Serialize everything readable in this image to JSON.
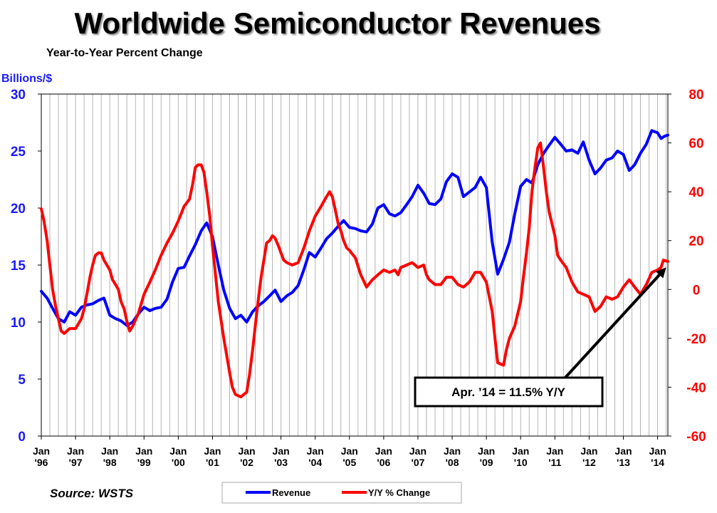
{
  "chart_data": {
    "type": "line",
    "title": "Worldwide Semiconductor Revenues",
    "subtitle": "Year-to-Year Percent Change",
    "left_axis_label": "Billions/$",
    "left_axis": {
      "min": 0,
      "max": 30,
      "ticks": [
        "0",
        "5",
        "10",
        "15",
        "20",
        "25",
        "30"
      ]
    },
    "right_axis": {
      "min": -60,
      "max": 80,
      "ticks": [
        "-60",
        "-40",
        "-20",
        "0",
        "20",
        "40",
        "60",
        "80"
      ]
    },
    "x_range": [
      1996.0,
      2014.3
    ],
    "x_ticks": [
      {
        "year": 1996,
        "top": "Jan",
        "bottom": "'96"
      },
      {
        "year": 1997,
        "top": "Jan",
        "bottom": "'97"
      },
      {
        "year": 1998,
        "top": "Jan",
        "bottom": "'98"
      },
      {
        "year": 1999,
        "top": "Jan",
        "bottom": "'99"
      },
      {
        "year": 2000,
        "top": "Jan",
        "bottom": "'00"
      },
      {
        "year": 2001,
        "top": "Jan",
        "bottom": "'01"
      },
      {
        "year": 2002,
        "top": "Jan",
        "bottom": "'02"
      },
      {
        "year": 2003,
        "top": "Jan",
        "bottom": "'03"
      },
      {
        "year": 2004,
        "top": "Jan",
        "bottom": "'04"
      },
      {
        "year": 2005,
        "top": "Jan",
        "bottom": "'05"
      },
      {
        "year": 2006,
        "top": "Jan",
        "bottom": "'06"
      },
      {
        "year": 2007,
        "top": "Jan",
        "bottom": "'07"
      },
      {
        "year": 2008,
        "top": "Jan",
        "bottom": "'08"
      },
      {
        "year": 2009,
        "top": "Jan",
        "bottom": "'09"
      },
      {
        "year": 2010,
        "top": "Jan",
        "bottom": "'10"
      },
      {
        "year": 2011,
        "top": "Jan",
        "bottom": "'11"
      },
      {
        "year": 2012,
        "top": "Jan",
        "bottom": "'12"
      },
      {
        "year": 2013,
        "top": "Jan",
        "bottom": "'13"
      },
      {
        "year": 2014,
        "top": "Jan",
        "bottom": "'14"
      }
    ],
    "series": [
      {
        "name": "Revenue",
        "axis": "left",
        "color": "#0000ff",
        "points": [
          [
            1996.0,
            12.7
          ],
          [
            1996.17,
            12.1
          ],
          [
            1996.33,
            11.2
          ],
          [
            1996.5,
            10.3
          ],
          [
            1996.67,
            10.0
          ],
          [
            1996.83,
            10.9
          ],
          [
            1997.0,
            10.6
          ],
          [
            1997.17,
            11.3
          ],
          [
            1997.33,
            11.5
          ],
          [
            1997.5,
            11.6
          ],
          [
            1997.67,
            11.9
          ],
          [
            1997.83,
            12.1
          ],
          [
            1998.0,
            10.6
          ],
          [
            1998.17,
            10.3
          ],
          [
            1998.33,
            10.1
          ],
          [
            1998.5,
            9.7
          ],
          [
            1998.67,
            10.0
          ],
          [
            1998.83,
            10.7
          ],
          [
            1999.0,
            11.3
          ],
          [
            1999.17,
            11.0
          ],
          [
            1999.33,
            11.2
          ],
          [
            1999.5,
            11.3
          ],
          [
            1999.67,
            12.0
          ],
          [
            1999.83,
            13.5
          ],
          [
            2000.0,
            14.7
          ],
          [
            2000.17,
            14.8
          ],
          [
            2000.33,
            15.8
          ],
          [
            2000.5,
            16.8
          ],
          [
            2000.67,
            18.0
          ],
          [
            2000.83,
            18.7
          ],
          [
            2001.0,
            17.5
          ],
          [
            2001.17,
            15.0
          ],
          [
            2001.33,
            12.8
          ],
          [
            2001.5,
            11.2
          ],
          [
            2001.67,
            10.3
          ],
          [
            2001.83,
            10.6
          ],
          [
            2002.0,
            10.0
          ],
          [
            2002.17,
            10.9
          ],
          [
            2002.33,
            11.4
          ],
          [
            2002.5,
            11.8
          ],
          [
            2002.67,
            12.3
          ],
          [
            2002.83,
            12.8
          ],
          [
            2003.0,
            11.8
          ],
          [
            2003.17,
            12.3
          ],
          [
            2003.33,
            12.6
          ],
          [
            2003.5,
            13.2
          ],
          [
            2003.67,
            14.6
          ],
          [
            2003.83,
            16.1
          ],
          [
            2004.0,
            15.7
          ],
          [
            2004.17,
            16.5
          ],
          [
            2004.33,
            17.3
          ],
          [
            2004.5,
            17.8
          ],
          [
            2004.67,
            18.4
          ],
          [
            2004.83,
            18.9
          ],
          [
            2005.0,
            18.3
          ],
          [
            2005.17,
            18.2
          ],
          [
            2005.33,
            18.0
          ],
          [
            2005.5,
            17.9
          ],
          [
            2005.67,
            18.6
          ],
          [
            2005.83,
            20.0
          ],
          [
            2006.0,
            20.3
          ],
          [
            2006.17,
            19.5
          ],
          [
            2006.33,
            19.3
          ],
          [
            2006.5,
            19.6
          ],
          [
            2006.67,
            20.3
          ],
          [
            2006.83,
            21.0
          ],
          [
            2007.0,
            22.0
          ],
          [
            2007.17,
            21.3
          ],
          [
            2007.33,
            20.4
          ],
          [
            2007.5,
            20.3
          ],
          [
            2007.67,
            20.8
          ],
          [
            2007.83,
            22.3
          ],
          [
            2008.0,
            23.0
          ],
          [
            2008.17,
            22.7
          ],
          [
            2008.33,
            21.0
          ],
          [
            2008.5,
            21.4
          ],
          [
            2008.67,
            21.8
          ],
          [
            2008.83,
            22.7
          ],
          [
            2009.0,
            21.8
          ],
          [
            2009.17,
            17.0
          ],
          [
            2009.33,
            14.2
          ],
          [
            2009.5,
            15.5
          ],
          [
            2009.67,
            17.0
          ],
          [
            2009.83,
            19.5
          ],
          [
            2010.0,
            21.9
          ],
          [
            2010.17,
            22.5
          ],
          [
            2010.33,
            22.2
          ],
          [
            2010.5,
            23.8
          ],
          [
            2010.67,
            24.8
          ],
          [
            2010.83,
            25.5
          ],
          [
            2011.0,
            26.2
          ],
          [
            2011.17,
            25.6
          ],
          [
            2011.33,
            25.0
          ],
          [
            2011.5,
            25.1
          ],
          [
            2011.67,
            24.8
          ],
          [
            2011.83,
            25.8
          ],
          [
            2012.0,
            24.2
          ],
          [
            2012.17,
            23.0
          ],
          [
            2012.33,
            23.5
          ],
          [
            2012.5,
            24.2
          ],
          [
            2012.67,
            24.4
          ],
          [
            2012.83,
            25.0
          ],
          [
            2013.0,
            24.7
          ],
          [
            2013.17,
            23.3
          ],
          [
            2013.33,
            23.8
          ],
          [
            2013.5,
            24.8
          ],
          [
            2013.67,
            25.6
          ],
          [
            2013.83,
            26.8
          ],
          [
            2014.0,
            26.6
          ],
          [
            2014.1,
            26.1
          ],
          [
            2014.2,
            26.3
          ],
          [
            2014.3,
            26.4
          ]
        ]
      },
      {
        "name": "Y/Y % Change",
        "axis": "right",
        "color": "#ff0000",
        "points": [
          [
            1996.0,
            33
          ],
          [
            1996.08,
            28
          ],
          [
            1996.17,
            20
          ],
          [
            1996.25,
            10
          ],
          [
            1996.33,
            0
          ],
          [
            1996.42,
            -7
          ],
          [
            1996.5,
            -12
          ],
          [
            1996.58,
            -17
          ],
          [
            1996.67,
            -18
          ],
          [
            1996.83,
            -16
          ],
          [
            1997.0,
            -16
          ],
          [
            1997.17,
            -12
          ],
          [
            1997.25,
            -8
          ],
          [
            1997.33,
            -2
          ],
          [
            1997.42,
            5
          ],
          [
            1997.5,
            10
          ],
          [
            1997.58,
            14
          ],
          [
            1997.67,
            15
          ],
          [
            1997.75,
            15
          ],
          [
            1997.83,
            12
          ],
          [
            1998.0,
            8
          ],
          [
            1998.08,
            4
          ],
          [
            1998.17,
            2
          ],
          [
            1998.25,
            0
          ],
          [
            1998.33,
            -5
          ],
          [
            1998.42,
            -8
          ],
          [
            1998.5,
            -13
          ],
          [
            1998.58,
            -17
          ],
          [
            1998.67,
            -15
          ],
          [
            1998.83,
            -10
          ],
          [
            1999.0,
            -2
          ],
          [
            1999.17,
            3
          ],
          [
            1999.33,
            8
          ],
          [
            1999.5,
            14
          ],
          [
            1999.67,
            19
          ],
          [
            1999.83,
            23
          ],
          [
            2000.0,
            28
          ],
          [
            2000.17,
            34
          ],
          [
            2000.33,
            37
          ],
          [
            2000.42,
            43
          ],
          [
            2000.5,
            50
          ],
          [
            2000.58,
            51
          ],
          [
            2000.67,
            51
          ],
          [
            2000.75,
            48
          ],
          [
            2000.83,
            40
          ],
          [
            2000.92,
            30
          ],
          [
            2001.0,
            18
          ],
          [
            2001.17,
            -5
          ],
          [
            2001.33,
            -20
          ],
          [
            2001.5,
            -34
          ],
          [
            2001.58,
            -40
          ],
          [
            2001.67,
            -43
          ],
          [
            2001.83,
            -44
          ],
          [
            2002.0,
            -42
          ],
          [
            2002.08,
            -35
          ],
          [
            2002.17,
            -25
          ],
          [
            2002.25,
            -15
          ],
          [
            2002.33,
            -5
          ],
          [
            2002.42,
            5
          ],
          [
            2002.5,
            12
          ],
          [
            2002.58,
            19
          ],
          [
            2002.67,
            20
          ],
          [
            2002.75,
            22
          ],
          [
            2002.83,
            21
          ],
          [
            2002.92,
            18
          ],
          [
            2003.0,
            15
          ],
          [
            2003.08,
            12
          ],
          [
            2003.17,
            11
          ],
          [
            2003.33,
            10
          ],
          [
            2003.5,
            11
          ],
          [
            2003.67,
            17
          ],
          [
            2003.83,
            24
          ],
          [
            2004.0,
            30
          ],
          [
            2004.17,
            34
          ],
          [
            2004.25,
            36
          ],
          [
            2004.33,
            38
          ],
          [
            2004.42,
            40
          ],
          [
            2004.5,
            38
          ],
          [
            2004.58,
            33
          ],
          [
            2004.67,
            27
          ],
          [
            2004.75,
            24
          ],
          [
            2004.83,
            20
          ],
          [
            2004.92,
            17
          ],
          [
            2005.0,
            16
          ],
          [
            2005.17,
            13
          ],
          [
            2005.33,
            6
          ],
          [
            2005.5,
            1
          ],
          [
            2005.67,
            4
          ],
          [
            2005.83,
            6
          ],
          [
            2006.0,
            8
          ],
          [
            2006.17,
            7
          ],
          [
            2006.33,
            8
          ],
          [
            2006.42,
            6
          ],
          [
            2006.5,
            9
          ],
          [
            2006.67,
            10
          ],
          [
            2006.83,
            11
          ],
          [
            2007.0,
            9
          ],
          [
            2007.17,
            10
          ],
          [
            2007.25,
            6
          ],
          [
            2007.33,
            4
          ],
          [
            2007.5,
            2
          ],
          [
            2007.67,
            2
          ],
          [
            2007.83,
            5
          ],
          [
            2008.0,
            5
          ],
          [
            2008.17,
            2
          ],
          [
            2008.33,
            1
          ],
          [
            2008.5,
            3
          ],
          [
            2008.67,
            7
          ],
          [
            2008.83,
            7
          ],
          [
            2009.0,
            3
          ],
          [
            2009.17,
            -9
          ],
          [
            2009.25,
            -20
          ],
          [
            2009.33,
            -30
          ],
          [
            2009.5,
            -31
          ],
          [
            2009.58,
            -25
          ],
          [
            2009.67,
            -20
          ],
          [
            2009.83,
            -15
          ],
          [
            2010.0,
            -5
          ],
          [
            2010.08,
            5
          ],
          [
            2010.17,
            15
          ],
          [
            2010.25,
            25
          ],
          [
            2010.33,
            40
          ],
          [
            2010.42,
            50
          ],
          [
            2010.5,
            58
          ],
          [
            2010.58,
            60
          ],
          [
            2010.67,
            50
          ],
          [
            2010.75,
            40
          ],
          [
            2010.83,
            32
          ],
          [
            2011.0,
            22
          ],
          [
            2011.08,
            14
          ],
          [
            2011.17,
            12
          ],
          [
            2011.33,
            9
          ],
          [
            2011.5,
            3
          ],
          [
            2011.67,
            -1
          ],
          [
            2011.83,
            -2
          ],
          [
            2012.0,
            -3
          ],
          [
            2012.17,
            -9
          ],
          [
            2012.33,
            -7
          ],
          [
            2012.5,
            -3
          ],
          [
            2012.67,
            -4
          ],
          [
            2012.83,
            -3
          ],
          [
            2013.0,
            1
          ],
          [
            2013.17,
            4
          ],
          [
            2013.33,
            1
          ],
          [
            2013.5,
            -2
          ],
          [
            2013.67,
            2
          ],
          [
            2013.83,
            7
          ],
          [
            2014.0,
            8
          ],
          [
            2014.1,
            9
          ],
          [
            2014.17,
            12
          ],
          [
            2014.3,
            11.5
          ]
        ]
      }
    ],
    "annotation": {
      "text": "Apr. ’14 = 11.5% Y/Y",
      "target": [
        2014.25,
        9
      ]
    },
    "source": "Source: WSTS",
    "legend": [
      {
        "label": "Revenue",
        "color": "#0000ff"
      },
      {
        "label": "Y/Y % Change",
        "color": "#ff0000"
      }
    ]
  }
}
